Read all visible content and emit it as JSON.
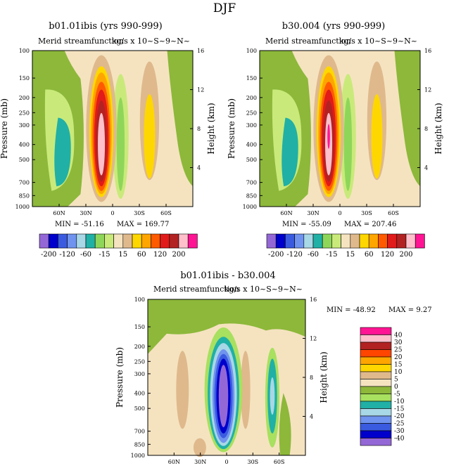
{
  "page_title": "DJF",
  "legend_colors": [
    "#9467d6",
    "#0000cc",
    "#3a5be0",
    "#6f93ee",
    "#a8d7e6",
    "#20b0a6",
    "#8ed65a",
    "#c9ea7a",
    "#f5e3c0",
    "#dfb98c",
    "#ffd700",
    "#ffa500",
    "#ff5a00",
    "#e11a1a",
    "#b22222",
    "#ffc0cb",
    "#ff1493"
  ],
  "chart_data": [
    {
      "type": "contour",
      "title": "b01.01ibis (yrs 990-999)",
      "subtitle_left": "Merid streamfunction",
      "subtitle_right": "kg/s x 10~S~9~N~",
      "ylabel": "Pressure (mb)",
      "y2label": "Height (km)",
      "yticks": [
        "100",
        "150",
        "200",
        "250",
        "300",
        "400",
        "500",
        "700",
        "850",
        "1000"
      ],
      "y2ticks": [
        "16",
        "12",
        "8",
        "4"
      ],
      "xticks": [
        "60N",
        "30N",
        "0",
        "30S",
        "60S"
      ],
      "min_label": "MIN = -51.16",
      "max_label": "MAX = 169.77",
      "min": -51.16,
      "max": 169.77,
      "colorbar_labels": [
        "-200",
        "-120",
        "-60",
        "-15",
        "15",
        "60",
        "120",
        "200"
      ]
    },
    {
      "type": "contour",
      "title": "b30.004 (yrs 990-999)",
      "subtitle_left": "Merid streamfunction",
      "subtitle_right": "kg/s x 10~S~9~N~",
      "ylabel": "Pressure (mb)",
      "y2label": "Height (km)",
      "yticks": [
        "100",
        "150",
        "200",
        "250",
        "300",
        "400",
        "500",
        "700",
        "850",
        "1000"
      ],
      "y2ticks": [
        "16",
        "12",
        "8",
        "4"
      ],
      "xticks": [
        "60N",
        "30N",
        "0",
        "30S",
        "60S"
      ],
      "min_label": "MIN = -55.09",
      "max_label": "MAX = 207.46",
      "min": -55.09,
      "max": 207.46,
      "colorbar_labels": [
        "-200",
        "-120",
        "-60",
        "-15",
        "15",
        "60",
        "120",
        "200"
      ]
    },
    {
      "type": "contour",
      "title": "b01.01ibis - b30.004",
      "subtitle_left": "Merid streamfunction",
      "subtitle_right": "kg/s x 10~S~9~N~",
      "ylabel": "Pressure (mb)",
      "y2label": "Height (km)",
      "yticks": [
        "100",
        "150",
        "200",
        "250",
        "300",
        "400",
        "500",
        "700",
        "850",
        "1000"
      ],
      "y2ticks": [
        "16",
        "12",
        "8",
        "4"
      ],
      "xticks": [
        "60N",
        "30N",
        "0",
        "30S",
        "60S"
      ],
      "min_label": "MIN = -48.92",
      "max_label": "MAX =   9.27",
      "min": -48.92,
      "max": 9.27,
      "colorbar_labels": [
        "40",
        "30",
        "25",
        "20",
        "15",
        "10",
        "5",
        "0",
        "-5",
        "-10",
        "-15",
        "-20",
        "-25",
        "-30",
        "-40"
      ],
      "colorbar_colors": [
        "#ff1493",
        "#ffc0cb",
        "#b22222",
        "#ff4500",
        "#ffa500",
        "#ffd700",
        "#dfb98c",
        "#f5e3c0",
        "#8db83a",
        "#a8e05f",
        "#20b0a6",
        "#a8d7e6",
        "#6f93ee",
        "#3a5be0",
        "#0000cc",
        "#9467d6"
      ]
    }
  ]
}
